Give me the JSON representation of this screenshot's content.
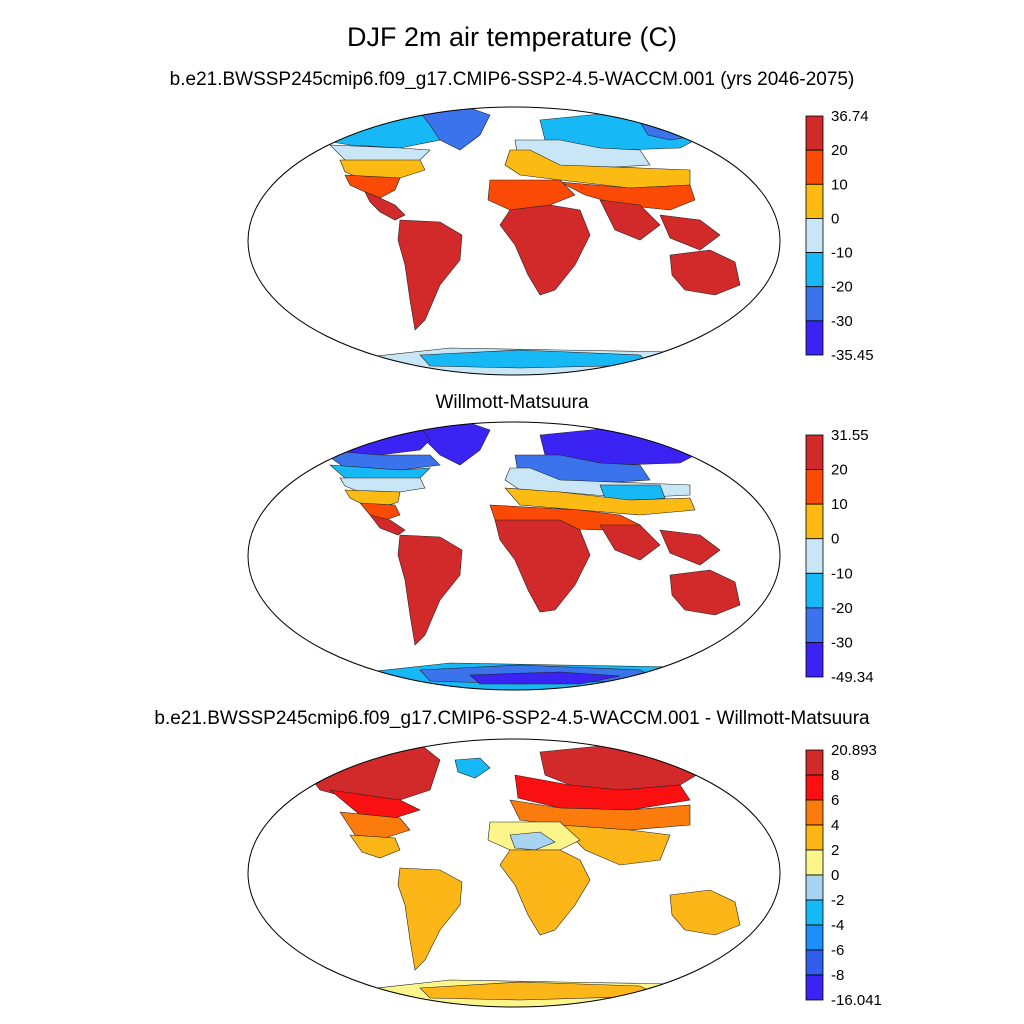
{
  "title": "DJF 2m air temperature (C)",
  "panels": [
    {
      "id": "model",
      "title": "b.e21.BWSSP245cmip6.f09_g17.CMIP6-SSP2-4.5-WACCM.001 (yrs 2046-2075)",
      "colorbar": {
        "labels": [
          "36.74",
          "20",
          "10",
          "0",
          "-10",
          "-20",
          "-30",
          "-35.45"
        ],
        "colors": [
          "#d22a2a",
          "#fa4a06",
          "#fcbb12",
          "#c9e6f7",
          "#16b9f6",
          "#3a73ec",
          "#3a23f3"
        ]
      }
    },
    {
      "id": "obs",
      "title": "Willmott-Matsuura",
      "colorbar": {
        "labels": [
          "31.55",
          "20",
          "10",
          "0",
          "-10",
          "-20",
          "-30",
          "-49.34"
        ],
        "colors": [
          "#d22a2a",
          "#fa4a06",
          "#fcbb12",
          "#c9e6f7",
          "#16b9f6",
          "#3a73ec",
          "#3a23f3"
        ]
      }
    },
    {
      "id": "diff",
      "title": "b.e21.BWSSP245cmip6.f09_g17.CMIP6-SSP2-4.5-WACCM.001 - Willmott-Matsuura",
      "colorbar": {
        "labels": [
          "20.893",
          "8",
          "6",
          "4",
          "2",
          "0",
          "-2",
          "-4",
          "-6",
          "-8",
          "-16.041"
        ],
        "colors": [
          "#d22a2a",
          "#fa1010",
          "#fb7b0c",
          "#fdb618",
          "#fbf58c",
          "#a8d3f1",
          "#16b9f6",
          "#1f8ef6",
          "#2f5fec",
          "#3a23f3"
        ]
      }
    }
  ]
}
